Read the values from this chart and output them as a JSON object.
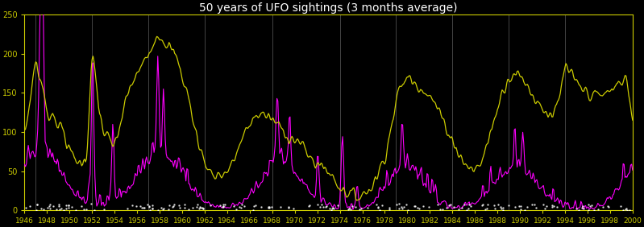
{
  "title": "50 years of UFO sightings (3 months average)",
  "title_color": "white",
  "bg_color": "black",
  "line_color_ufo": "#cccc00",
  "line_color_solar": "#ff00ff",
  "ylim": [
    0,
    250
  ],
  "yticks": [
    0,
    50,
    100,
    150,
    200,
    250
  ],
  "year_start": 1946,
  "year_end": 2000,
  "title_fontsize": 10,
  "vline_color": "#444444",
  "vline_years": [
    1947,
    1952,
    1957,
    1962,
    1968,
    1974,
    1979,
    1984,
    1989,
    1994
  ],
  "ufo_year_vals": {
    "1946": 90,
    "1947": 195,
    "1947.3": 170,
    "1947.6": 160,
    "1948": 120,
    "1948.5": 125,
    "1949": 110,
    "1949.5": 100,
    "1950": 75,
    "1950.5": 65,
    "1951": 60,
    "1951.5": 65,
    "1952": 200,
    "1952.3": 170,
    "1952.6": 130,
    "1953": 100,
    "1953.5": 90,
    "1954": 80,
    "1954.5": 110,
    "1955": 140,
    "1955.5": 160,
    "1956": 175,
    "1956.5": 185,
    "1957": 200,
    "1957.5": 220,
    "1958": 225,
    "1958.5": 215,
    "1959": 205,
    "1959.5": 195,
    "1960": 170,
    "1960.5": 150,
    "1961": 110,
    "1961.5": 85,
    "1962": 60,
    "1962.5": 50,
    "1963": 45,
    "1963.5": 45,
    "1964": 50,
    "1964.5": 60,
    "1965": 80,
    "1965.5": 95,
    "1966": 110,
    "1966.5": 120,
    "1967": 125,
    "1967.5": 120,
    "1968": 115,
    "1968.5": 110,
    "1969": 100,
    "1969.5": 95,
    "1970": 90,
    "1970.5": 85,
    "1971": 75,
    "1971.5": 65,
    "1972": 60,
    "1972.5": 55,
    "1973": 50,
    "1973.5": 40,
    "1974": 30,
    "1974.5": 25,
    "1975": 20,
    "1975.5": 18,
    "1976": 20,
    "1976.5": 25,
    "1977": 35,
    "1977.5": 50,
    "1978": 70,
    "1978.5": 100,
    "1979": 140,
    "1979.5": 160,
    "1980": 170,
    "1980.5": 165,
    "1981": 160,
    "1981.5": 155,
    "1982": 145,
    "1982.5": 135,
    "1983": 120,
    "1983.5": 105,
    "1984": 90,
    "1984.5": 75,
    "1985": 60,
    "1985.5": 55,
    "1986": 50,
    "1986.5": 60,
    "1987": 80,
    "1987.5": 105,
    "1988": 130,
    "1988.5": 155,
    "1989": 170,
    "1989.5": 175,
    "1990": 170,
    "1990.5": 165,
    "1991": 150,
    "1991.5": 140,
    "1992": 130,
    "1992.5": 125,
    "1993": 120,
    "1993.5": 140,
    "1994": 185,
    "1994.5": 175,
    "1995": 160,
    "1995.5": 155,
    "1996": 150,
    "1996.5": 148,
    "1997": 145,
    "1997.5": 148,
    "1998": 152,
    "1998.5": 158,
    "1999": 165,
    "1999.5": 170,
    "2000": 110
  }
}
